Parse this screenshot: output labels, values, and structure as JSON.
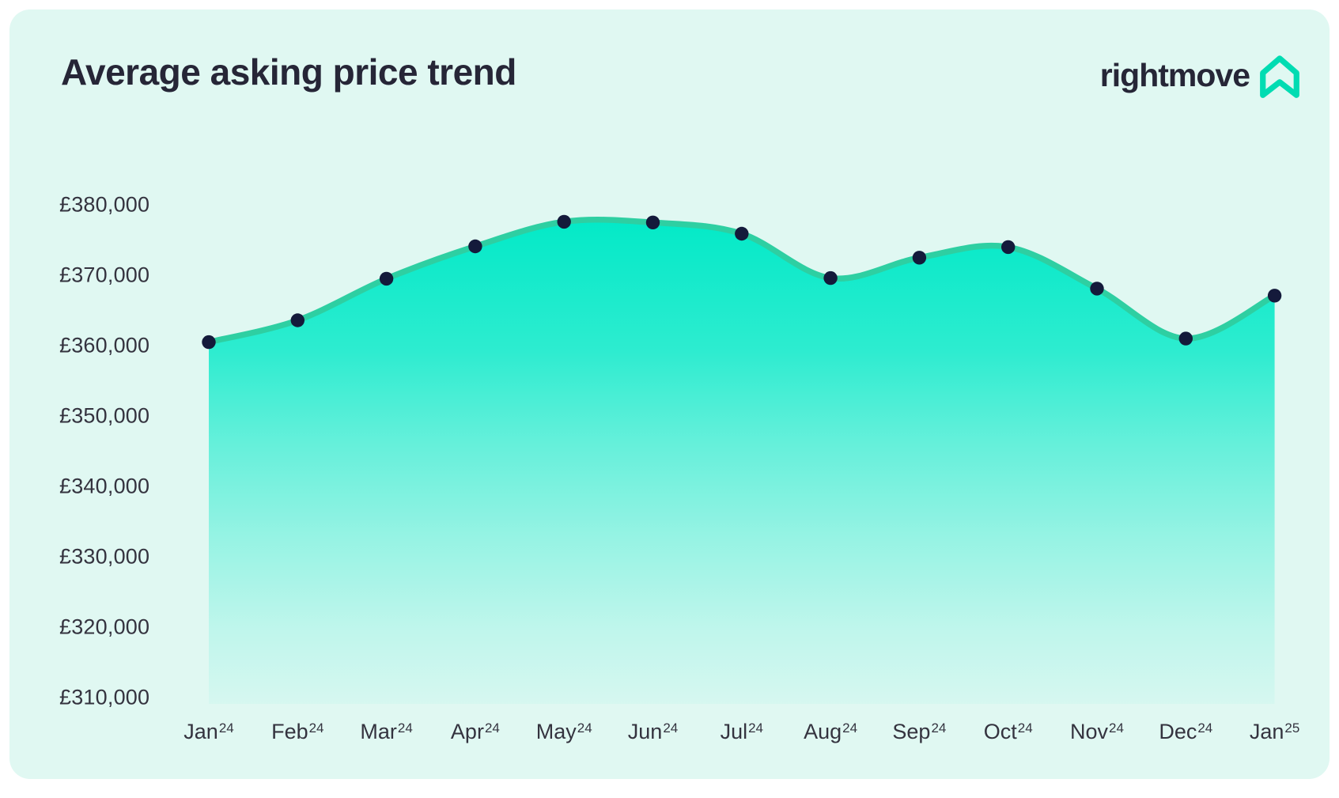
{
  "header": {
    "title": "Average asking price trend",
    "logo": {
      "text": "rightmove",
      "icon": "rightmove-house-icon",
      "text_color": "#262637",
      "icon_color": "#00dcb2"
    }
  },
  "chart_data": {
    "type": "area",
    "title": "Average asking price trend",
    "categories": [
      {
        "month": "Jan",
        "year": "24"
      },
      {
        "month": "Feb",
        "year": "24"
      },
      {
        "month": "Mar",
        "year": "24"
      },
      {
        "month": "Apr",
        "year": "24"
      },
      {
        "month": "May",
        "year": "24"
      },
      {
        "month": "Jun",
        "year": "24"
      },
      {
        "month": "Jul",
        "year": "24"
      },
      {
        "month": "Aug",
        "year": "24"
      },
      {
        "month": "Sep",
        "year": "24"
      },
      {
        "month": "Oct",
        "year": "24"
      },
      {
        "month": "Nov",
        "year": "24"
      },
      {
        "month": "Dec",
        "year": "24"
      },
      {
        "month": "Jan",
        "year": "25"
      }
    ],
    "values": [
      360500,
      363600,
      369500,
      374100,
      377600,
      377500,
      375900,
      369600,
      372500,
      374000,
      368100,
      361000,
      367100
    ],
    "currency_symbol": "£",
    "y_tick_labels": [
      "£380,000",
      "£370,000",
      "£360,000",
      "£350,000",
      "£340,000",
      "£330,000",
      "£320,000",
      "£310,000"
    ],
    "y_tick_values": [
      380000,
      370000,
      360000,
      350000,
      340000,
      330000,
      320000,
      310000
    ],
    "ylim": [
      308700,
      380000
    ],
    "grid": false,
    "legend": false,
    "colors": {
      "line": "#2ecfa2",
      "area_fill": "#00e9c7",
      "point": "#141a3b",
      "axis_label": "#34333f",
      "card_background": "#e0f8f2",
      "title": "#262637"
    }
  }
}
